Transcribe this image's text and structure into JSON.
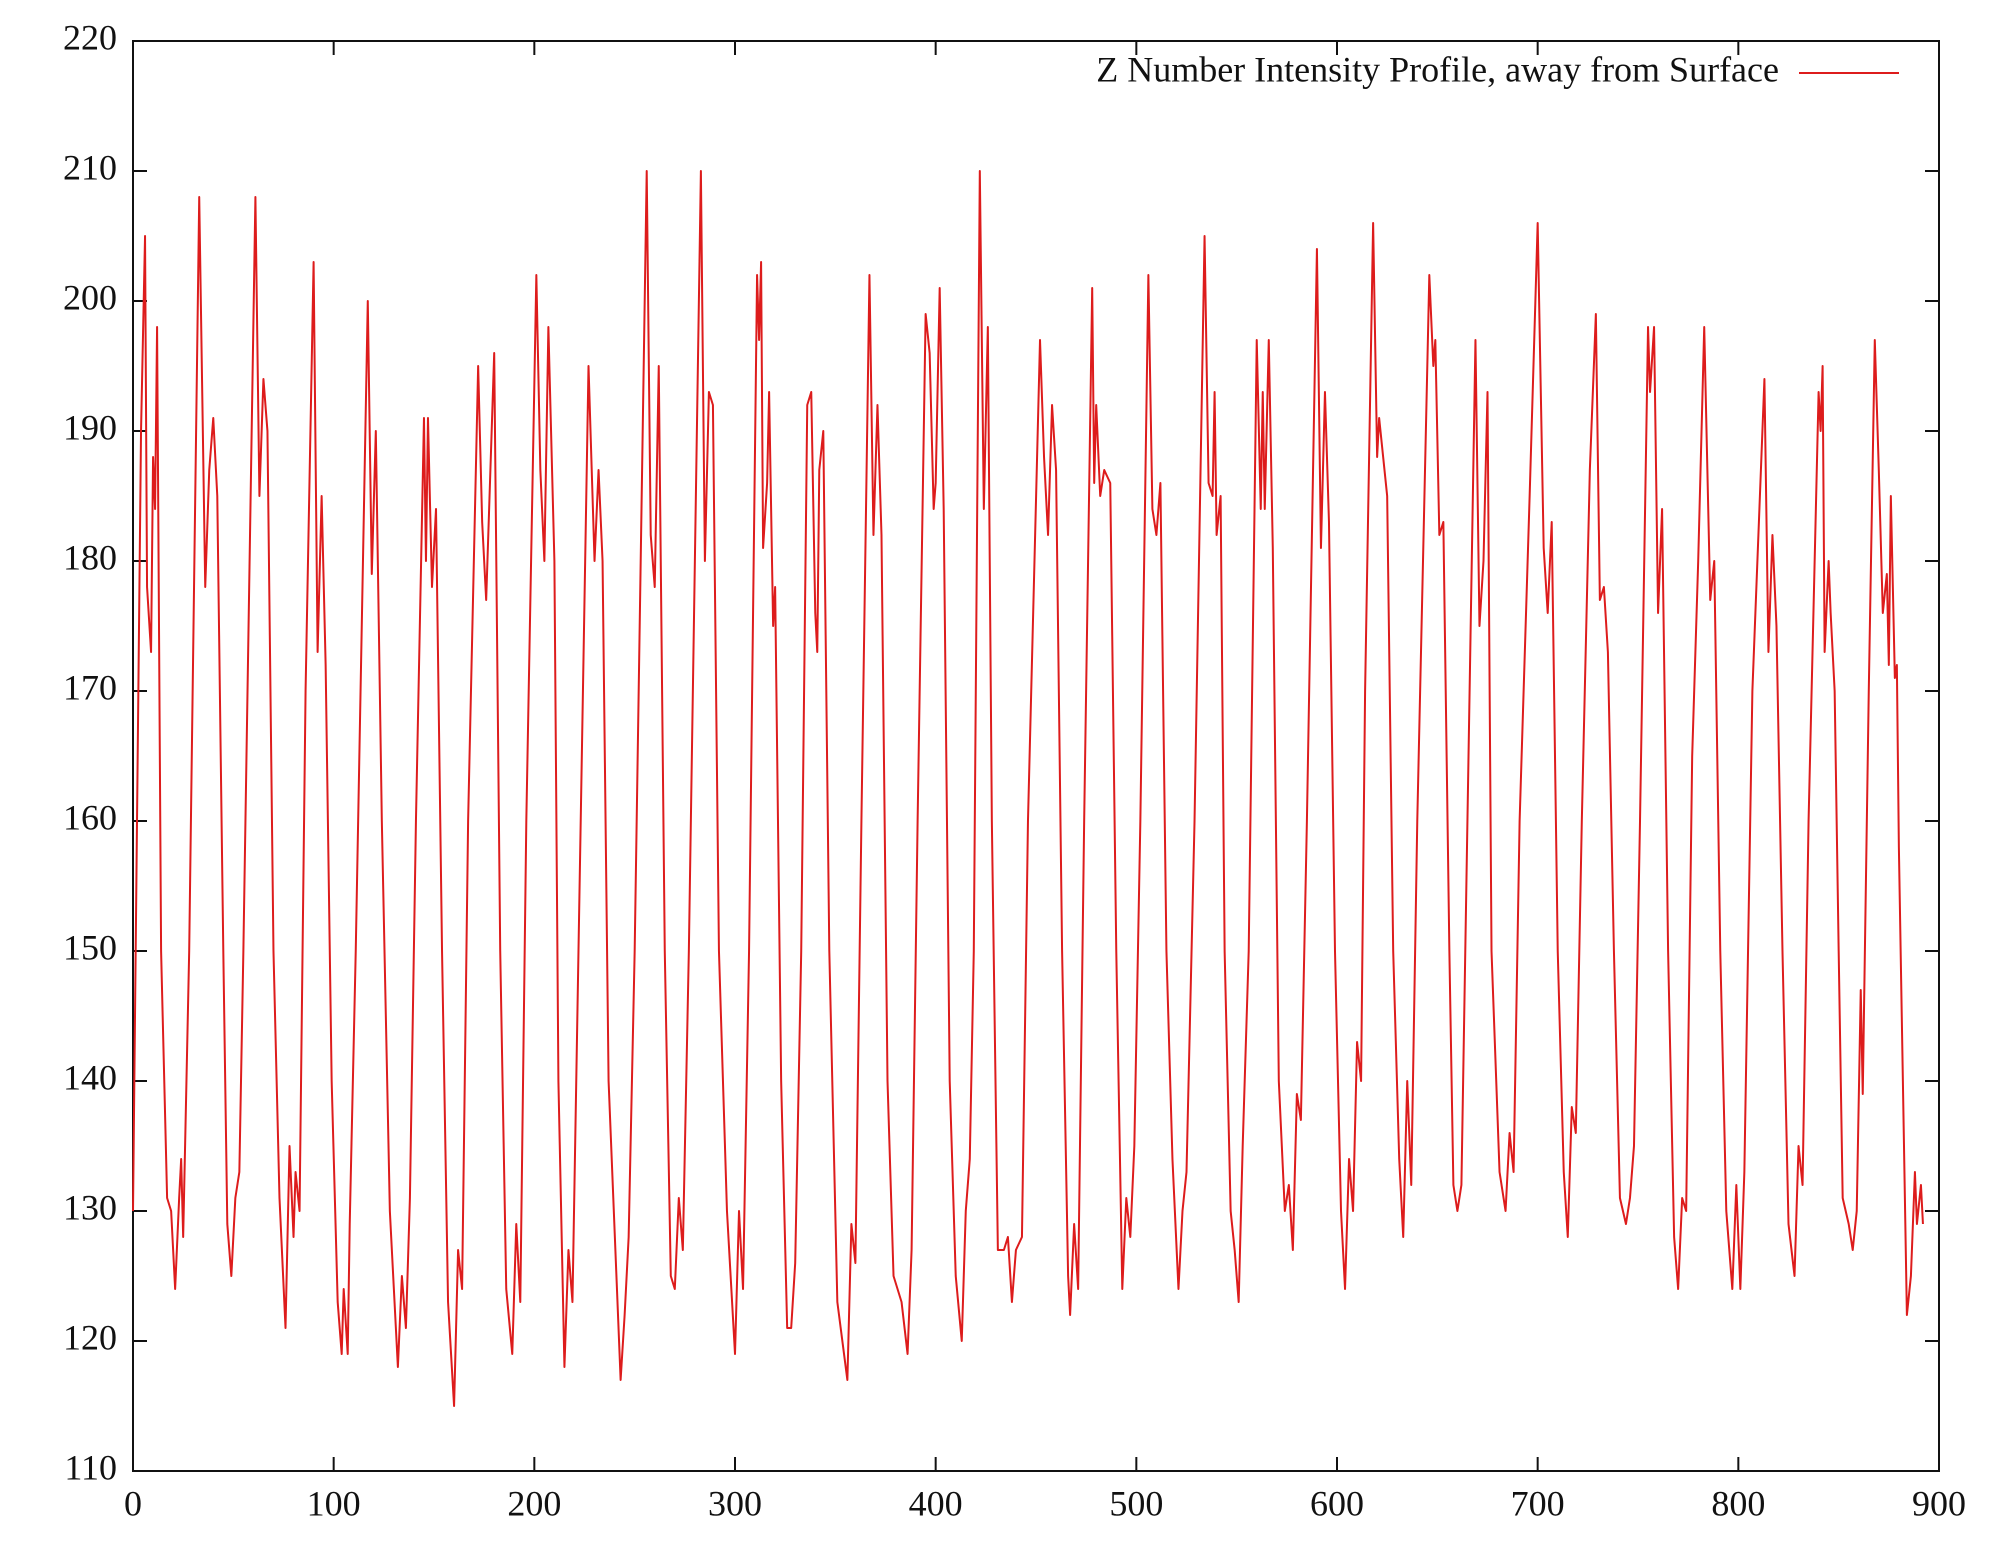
{
  "chart_data": {
    "type": "line",
    "x": [
      0,
      2,
      4,
      6,
      7,
      9,
      10,
      11,
      12,
      14,
      17,
      19,
      21,
      23,
      24,
      25,
      28,
      33,
      36,
      38,
      40,
      42,
      45,
      47,
      49,
      51,
      53,
      55,
      61,
      63,
      65,
      67,
      70,
      73,
      76,
      78,
      80,
      81,
      83,
      86,
      90,
      92,
      94,
      96,
      99,
      102,
      104,
      105,
      107,
      108,
      111,
      117,
      119,
      121,
      124,
      128,
      132,
      134,
      136,
      138,
      141,
      145,
      146,
      147,
      149,
      151,
      154,
      157,
      160,
      162,
      164,
      167,
      172,
      174,
      176,
      180,
      183,
      186,
      189,
      191,
      193,
      196,
      201,
      203,
      205,
      207,
      210,
      212,
      215,
      217,
      219,
      222,
      227,
      230,
      232,
      234,
      237,
      243,
      245,
      247,
      250,
      256,
      258,
      260,
      262,
      265,
      268,
      270,
      272,
      274,
      277,
      283,
      285,
      287,
      289,
      292,
      296,
      300,
      302,
      304,
      307,
      311,
      312,
      313,
      314,
      316,
      317,
      319,
      320,
      323,
      326,
      328,
      330,
      333,
      336,
      338,
      340,
      341,
      342,
      344,
      347,
      351,
      356,
      358,
      360,
      363,
      367,
      369,
      371,
      373,
      376,
      379,
      383,
      386,
      388,
      391,
      395,
      397,
      399,
      400,
      402,
      404,
      407,
      410,
      413,
      415,
      417,
      419,
      422,
      424,
      426,
      428,
      431,
      434,
      436,
      438,
      440,
      443,
      446,
      452,
      454,
      456,
      458,
      460,
      463,
      466,
      467,
      469,
      471,
      474,
      478,
      479,
      480,
      482,
      484,
      487,
      490,
      493,
      495,
      497,
      499,
      502,
      506,
      508,
      510,
      512,
      515,
      518,
      521,
      523,
      525,
      529,
      534,
      536,
      538,
      539,
      540,
      542,
      544,
      547,
      549,
      551,
      553,
      556,
      560,
      562,
      563,
      564,
      566,
      568,
      571,
      574,
      576,
      578,
      580,
      582,
      585,
      590,
      592,
      594,
      596,
      599,
      602,
      604,
      606,
      608,
      610,
      612,
      614,
      618,
      620,
      621,
      623,
      625,
      628,
      631,
      633,
      635,
      637,
      640,
      646,
      648,
      649,
      651,
      653,
      656,
      658,
      660,
      662,
      665,
      669,
      671,
      673,
      675,
      677,
      681,
      684,
      686,
      688,
      691,
      696,
      700,
      703,
      705,
      707,
      710,
      713,
      715,
      717,
      719,
      722,
      726,
      729,
      731,
      733,
      735,
      738,
      741,
      744,
      746,
      748,
      751,
      755,
      756,
      758,
      760,
      762,
      765,
      768,
      770,
      772,
      774,
      777,
      780,
      783,
      784,
      786,
      788,
      791,
      794,
      797,
      799,
      801,
      803,
      807,
      813,
      815,
      817,
      819,
      822,
      825,
      828,
      830,
      832,
      835,
      840,
      841,
      842,
      843,
      845,
      846,
      848,
      850,
      852,
      855,
      857,
      859,
      861,
      862,
      865,
      868,
      870,
      872,
      874,
      875,
      876,
      878,
      879,
      880,
      882,
      884,
      886,
      888,
      889,
      891,
      892
    ],
    "series": [
      {
        "name": "Z Number Intensity Profile, away from Surface",
        "color": "#dd1c1c",
        "values": [
          130,
          160,
          190,
          205,
          178,
          173,
          188,
          184,
          198,
          150,
          131,
          130,
          124,
          131,
          134,
          128,
          150,
          208,
          178,
          187,
          191,
          185,
          150,
          129,
          125,
          131,
          133,
          150,
          208,
          185,
          194,
          190,
          150,
          131,
          121,
          135,
          128,
          133,
          130,
          170,
          203,
          173,
          185,
          172,
          140,
          123,
          119,
          124,
          119,
          129,
          150,
          200,
          179,
          190,
          160,
          130,
          118,
          125,
          121,
          131,
          160,
          191,
          180,
          191,
          178,
          184,
          150,
          123,
          115,
          127,
          124,
          160,
          195,
          183,
          177,
          196,
          150,
          124,
          119,
          129,
          123,
          160,
          202,
          187,
          180,
          198,
          180,
          140,
          118,
          127,
          123,
          150,
          195,
          180,
          187,
          180,
          140,
          117,
          122,
          128,
          150,
          210,
          182,
          178,
          195,
          150,
          125,
          124,
          131,
          127,
          150,
          210,
          180,
          193,
          192,
          150,
          130,
          119,
          130,
          124,
          150,
          202,
          197,
          203,
          181,
          186,
          193,
          175,
          178,
          140,
          121,
          121,
          126,
          150,
          192,
          193,
          176,
          173,
          187,
          190,
          150,
          123,
          117,
          129,
          126,
          160,
          202,
          182,
          192,
          182,
          140,
          125,
          123,
          119,
          127,
          160,
          199,
          196,
          184,
          186,
          201,
          184,
          140,
          125,
          120,
          130,
          134,
          150,
          210,
          184,
          198,
          160,
          127,
          127,
          128,
          123,
          127,
          128,
          160,
          197,
          188,
          182,
          192,
          187,
          150,
          125,
          122,
          129,
          124,
          160,
          201,
          186,
          192,
          185,
          187,
          186,
          150,
          124,
          131,
          128,
          135,
          160,
          202,
          184,
          182,
          186,
          150,
          134,
          124,
          130,
          133,
          160,
          205,
          186,
          185,
          193,
          182,
          185,
          150,
          130,
          127,
          123,
          135,
          150,
          197,
          184,
          193,
          184,
          197,
          181,
          140,
          130,
          132,
          127,
          139,
          137,
          160,
          204,
          181,
          193,
          183,
          150,
          130,
          124,
          134,
          130,
          143,
          140,
          170,
          206,
          188,
          191,
          188,
          185,
          150,
          134,
          128,
          140,
          132,
          160,
          202,
          195,
          197,
          182,
          183,
          150,
          132,
          130,
          132,
          160,
          197,
          175,
          180,
          193,
          150,
          133,
          130,
          136,
          133,
          160,
          185,
          206,
          181,
          176,
          183,
          150,
          133,
          128,
          138,
          136,
          160,
          187,
          199,
          177,
          178,
          173,
          150,
          131,
          129,
          131,
          135,
          160,
          198,
          193,
          198,
          176,
          184,
          150,
          128,
          124,
          131,
          130,
          165,
          180,
          198,
          191,
          177,
          180,
          150,
          130,
          124,
          132,
          124,
          133,
          170,
          194,
          173,
          182,
          175,
          150,
          129,
          125,
          135,
          132,
          160,
          193,
          190,
          195,
          173,
          180,
          176,
          170,
          150,
          131,
          129,
          127,
          130,
          147,
          139,
          170,
          197,
          187,
          176,
          179,
          172,
          185,
          171,
          172,
          158,
          140,
          122,
          125,
          133,
          129,
          132,
          129
        ]
      }
    ],
    "xlim": [
      0,
      900
    ],
    "xticks": [
      0,
      100,
      200,
      300,
      400,
      500,
      600,
      700,
      800,
      900
    ],
    "ylim": [
      110,
      220
    ],
    "yticks": [
      110,
      120,
      130,
      140,
      150,
      160,
      170,
      180,
      190,
      200,
      210,
      220
    ],
    "legend": "top right",
    "grid": false
  }
}
